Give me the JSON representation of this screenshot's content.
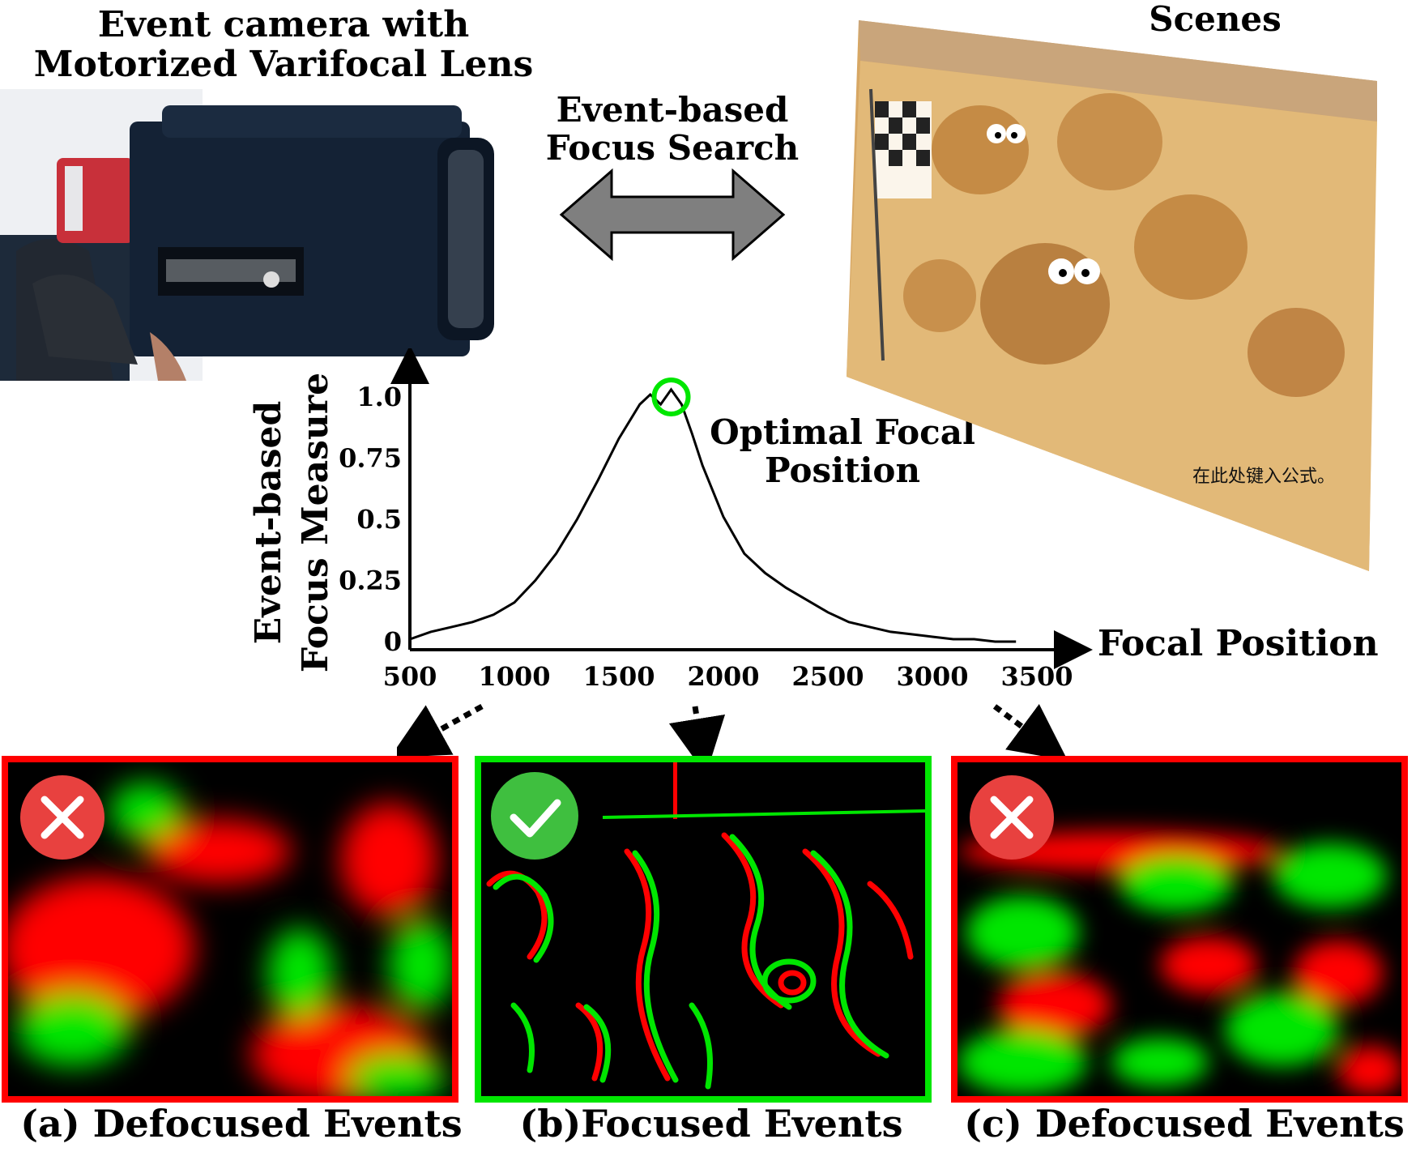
{
  "labels": {
    "camera_title": "Event camera with Motorized Varifocal Lens",
    "scenes_title": "Scenes",
    "search_label": "Event-based Focus Search",
    "optimal_label": "Optimal Focal Position",
    "focal_axis_label": "Focal Position",
    "watermark": "在此处键入公式。"
  },
  "panels": {
    "a": {
      "caption": "(a) Defocused Events",
      "status": "x-icon",
      "border": "#ff0000"
    },
    "b": {
      "caption": "(b)Focused Events",
      "status": "check-icon",
      "border": "#00e600"
    },
    "c": {
      "caption": "(c) Defocused Events",
      "status": "x-icon",
      "border": "#ff0000"
    }
  },
  "colors": {
    "positive_events": "#00e600",
    "negative_events": "#ff0000",
    "status_bad": "#e8413f",
    "status_good": "#3fbf3f"
  },
  "chart_data": {
    "type": "line",
    "xlabel": "Focal Position",
    "ylabel": "Event-based Focus Measure",
    "xticks": [
      500,
      1000,
      1500,
      2000,
      2500,
      3000,
      3500
    ],
    "yticks": [
      "0",
      "0.25",
      "0.5",
      "0.75",
      "1.0"
    ],
    "xlim": [
      500,
      3500
    ],
    "ylim": [
      0,
      1.0
    ],
    "x": [
      500,
      600,
      700,
      800,
      900,
      1000,
      1100,
      1200,
      1300,
      1400,
      1500,
      1600,
      1650,
      1700,
      1750,
      1800,
      1850,
      1900,
      2000,
      2100,
      2200,
      2300,
      2400,
      2500,
      2600,
      2700,
      2800,
      2900,
      3000,
      3100,
      3200,
      3300,
      3400
    ],
    "y": [
      0.01,
      0.04,
      0.06,
      0.08,
      0.11,
      0.16,
      0.25,
      0.36,
      0.5,
      0.66,
      0.83,
      0.97,
      1.01,
      0.97,
      1.03,
      0.97,
      0.85,
      0.72,
      0.51,
      0.36,
      0.28,
      0.22,
      0.17,
      0.12,
      0.08,
      0.06,
      0.04,
      0.03,
      0.02,
      0.01,
      0.01,
      0.0,
      0.0
    ],
    "optimal_x": 1750
  }
}
